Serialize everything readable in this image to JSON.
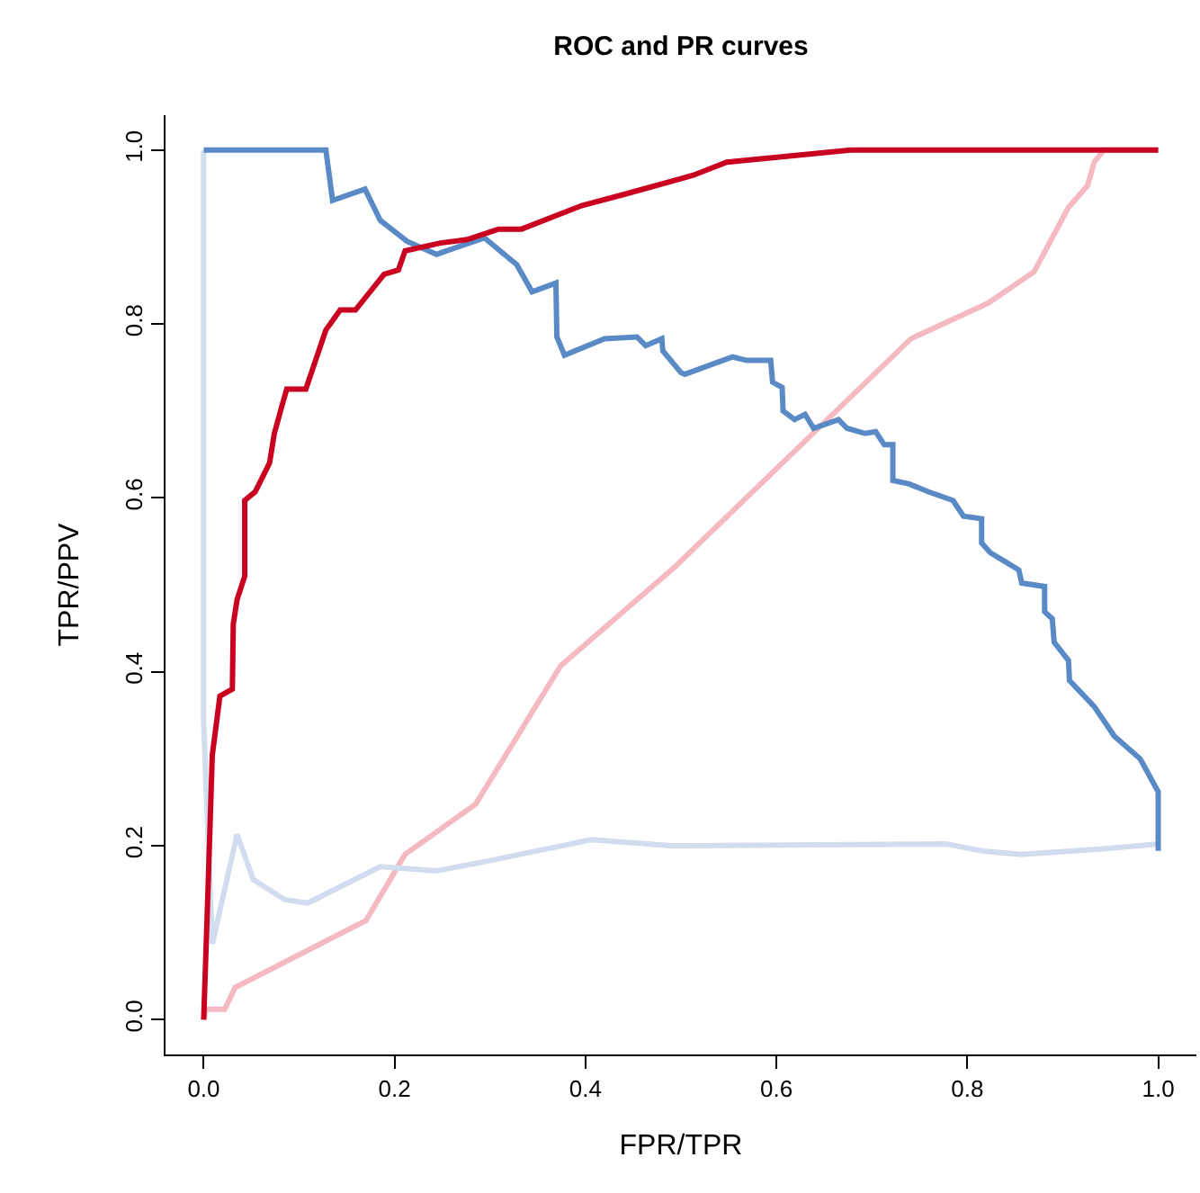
{
  "chart_data": {
    "type": "line",
    "title": "ROC and PR curves",
    "xlabel": "FPR/TPR",
    "ylabel": "TPR/PPV",
    "xlim": [
      -0.04,
      1.04
    ],
    "ylim": [
      -0.04,
      1.04
    ],
    "xticks": [
      {
        "value": 0,
        "label": "0.0"
      },
      {
        "value": 0.2,
        "label": "0.2"
      },
      {
        "value": 0.4,
        "label": "0.4"
      },
      {
        "value": 0.6,
        "label": "0.6"
      },
      {
        "value": 0.8,
        "label": "0.8"
      },
      {
        "value": 1,
        "label": "1.0"
      }
    ],
    "yticks": [
      {
        "value": 0,
        "label": "0.0"
      },
      {
        "value": 0.2,
        "label": "0.2"
      },
      {
        "value": 0.4,
        "label": "0.4"
      },
      {
        "value": 0.6,
        "label": "0.6"
      },
      {
        "value": 0.8,
        "label": "0.8"
      },
      {
        "value": 1,
        "label": "1.0"
      }
    ],
    "marker": "none",
    "line_style": "solid",
    "series": [
      {
        "color": "#f4b9c1",
        "x": [
          0,
          0.002,
          0.022,
          0.033,
          0.17,
          0.211,
          0.285,
          0.374,
          0.494,
          0.741,
          0.822,
          0.87,
          0.906,
          0.926,
          0.933,
          0.943,
          1
        ],
        "values": [
          0,
          0.012,
          0.012,
          0.037,
          0.114,
          0.19,
          0.248,
          0.407,
          0.521,
          0.783,
          0.824,
          0.86,
          0.934,
          0.959,
          0.986,
          1,
          1
        ]
      },
      {
        "color": "#d1dcee",
        "x": [
          0,
          0,
          0.009,
          0.035,
          0.052,
          0.085,
          0.109,
          0.185,
          0.244,
          0.296,
          0.406,
          0.489,
          0.778,
          0.815,
          0.856,
          0.939,
          1
        ],
        "values": [
          1,
          0.34,
          0.087,
          0.213,
          0.161,
          0.138,
          0.134,
          0.176,
          0.171,
          0.182,
          0.207,
          0.2,
          0.202,
          0.194,
          0.19,
          0.196,
          0.202
        ]
      },
      {
        "color": "#5a8ac6",
        "x": [
          0,
          0.128,
          0.135,
          0.169,
          0.185,
          0.213,
          0.244,
          0.294,
          0.328,
          0.344,
          0.369,
          0.37,
          0.378,
          0.42,
          0.454,
          0.463,
          0.48,
          0.481,
          0.5,
          0.504,
          0.554,
          0.569,
          0.594,
          0.596,
          0.606,
          0.607,
          0.619,
          0.63,
          0.639,
          0.665,
          0.674,
          0.693,
          0.704,
          0.713,
          0.722,
          0.722,
          0.739,
          0.759,
          0.785,
          0.796,
          0.815,
          0.815,
          0.824,
          0.839,
          0.854,
          0.857,
          0.881,
          0.881,
          0.889,
          0.891,
          0.906,
          0.907,
          0.933,
          0.954,
          0.981,
          1,
          1
        ],
        "values": [
          1,
          1,
          0.942,
          0.955,
          0.919,
          0.895,
          0.88,
          0.899,
          0.868,
          0.837,
          0.847,
          0.785,
          0.764,
          0.783,
          0.785,
          0.775,
          0.783,
          0.769,
          0.744,
          0.742,
          0.762,
          0.758,
          0.758,
          0.733,
          0.727,
          0.7,
          0.69,
          0.696,
          0.68,
          0.69,
          0.68,
          0.674,
          0.676,
          0.661,
          0.661,
          0.62,
          0.616,
          0.607,
          0.597,
          0.579,
          0.576,
          0.548,
          0.537,
          0.527,
          0.517,
          0.502,
          0.498,
          0.469,
          0.461,
          0.434,
          0.413,
          0.39,
          0.36,
          0.326,
          0.3,
          0.262,
          0.194
        ]
      },
      {
        "color": "#ca0020",
        "x": [
          0,
          0.004,
          0.009,
          0.017,
          0.03,
          0.031,
          0.035,
          0.043,
          0.043,
          0.054,
          0.069,
          0.074,
          0.081,
          0.087,
          0.107,
          0.128,
          0.143,
          0.159,
          0.189,
          0.204,
          0.211,
          0.248,
          0.276,
          0.309,
          0.333,
          0.396,
          0.444,
          0.513,
          0.548,
          0.678,
          1
        ],
        "values": [
          0,
          0.132,
          0.304,
          0.372,
          0.38,
          0.455,
          0.483,
          0.51,
          0.597,
          0.607,
          0.64,
          0.674,
          0.702,
          0.725,
          0.725,
          0.793,
          0.816,
          0.816,
          0.857,
          0.862,
          0.884,
          0.893,
          0.897,
          0.909,
          0.909,
          0.936,
          0.95,
          0.971,
          0.986,
          1,
          1
        ]
      }
    ]
  }
}
